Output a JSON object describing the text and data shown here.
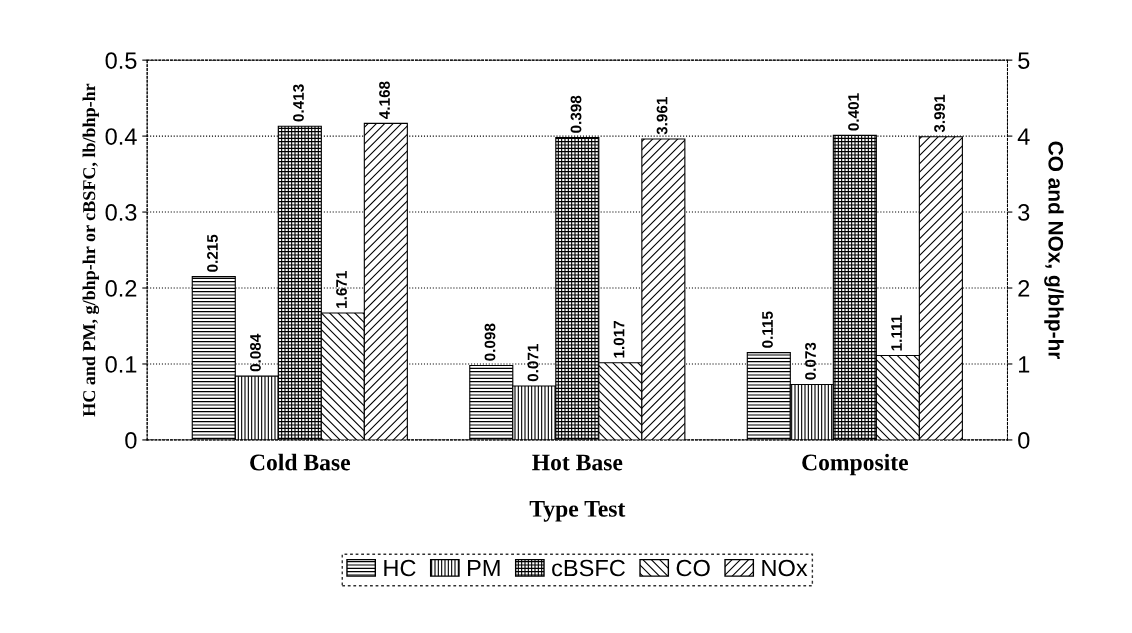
{
  "chart_data": {
    "type": "bar",
    "xlabel": "Type Test",
    "ylabel": "HC and PM, g/bhp-hr or cBSFC, lb/bhp-hr",
    "y2label": "CO and NOx, g/bhp-hr",
    "categories": [
      "Cold Base",
      "Hot Base",
      "Composite"
    ],
    "series": [
      {
        "name": "HC",
        "color": "#000000",
        "values": [
          0.215,
          0.098,
          0.115
        ]
      },
      {
        "name": "PM",
        "color": "#000000",
        "values": [
          0.084,
          0.071,
          0.073
        ]
      },
      {
        "name": "cBSFC",
        "color": "#000000",
        "values": [
          0.413,
          0.398,
          0.401
        ]
      },
      {
        "name": "CO",
        "color": "#000000",
        "axis": "y2",
        "values": [
          1.671,
          1.017,
          1.111
        ]
      },
      {
        "name": "NOx",
        "color": "#000000",
        "axis": "y2",
        "values": [
          4.168,
          3.961,
          3.991
        ]
      }
    ],
    "ylim": [
      0,
      0.5
    ],
    "yticks": [
      {
        "value": 0,
        "label": "0"
      },
      0.1,
      0.2,
      0.3,
      0.4,
      0.5
    ],
    "y2lim": [
      0,
      5
    ],
    "y2ticks": [
      0,
      1,
      2,
      3,
      4,
      5
    ],
    "data_labels": true,
    "grid": "y",
    "legend": "bottom"
  }
}
